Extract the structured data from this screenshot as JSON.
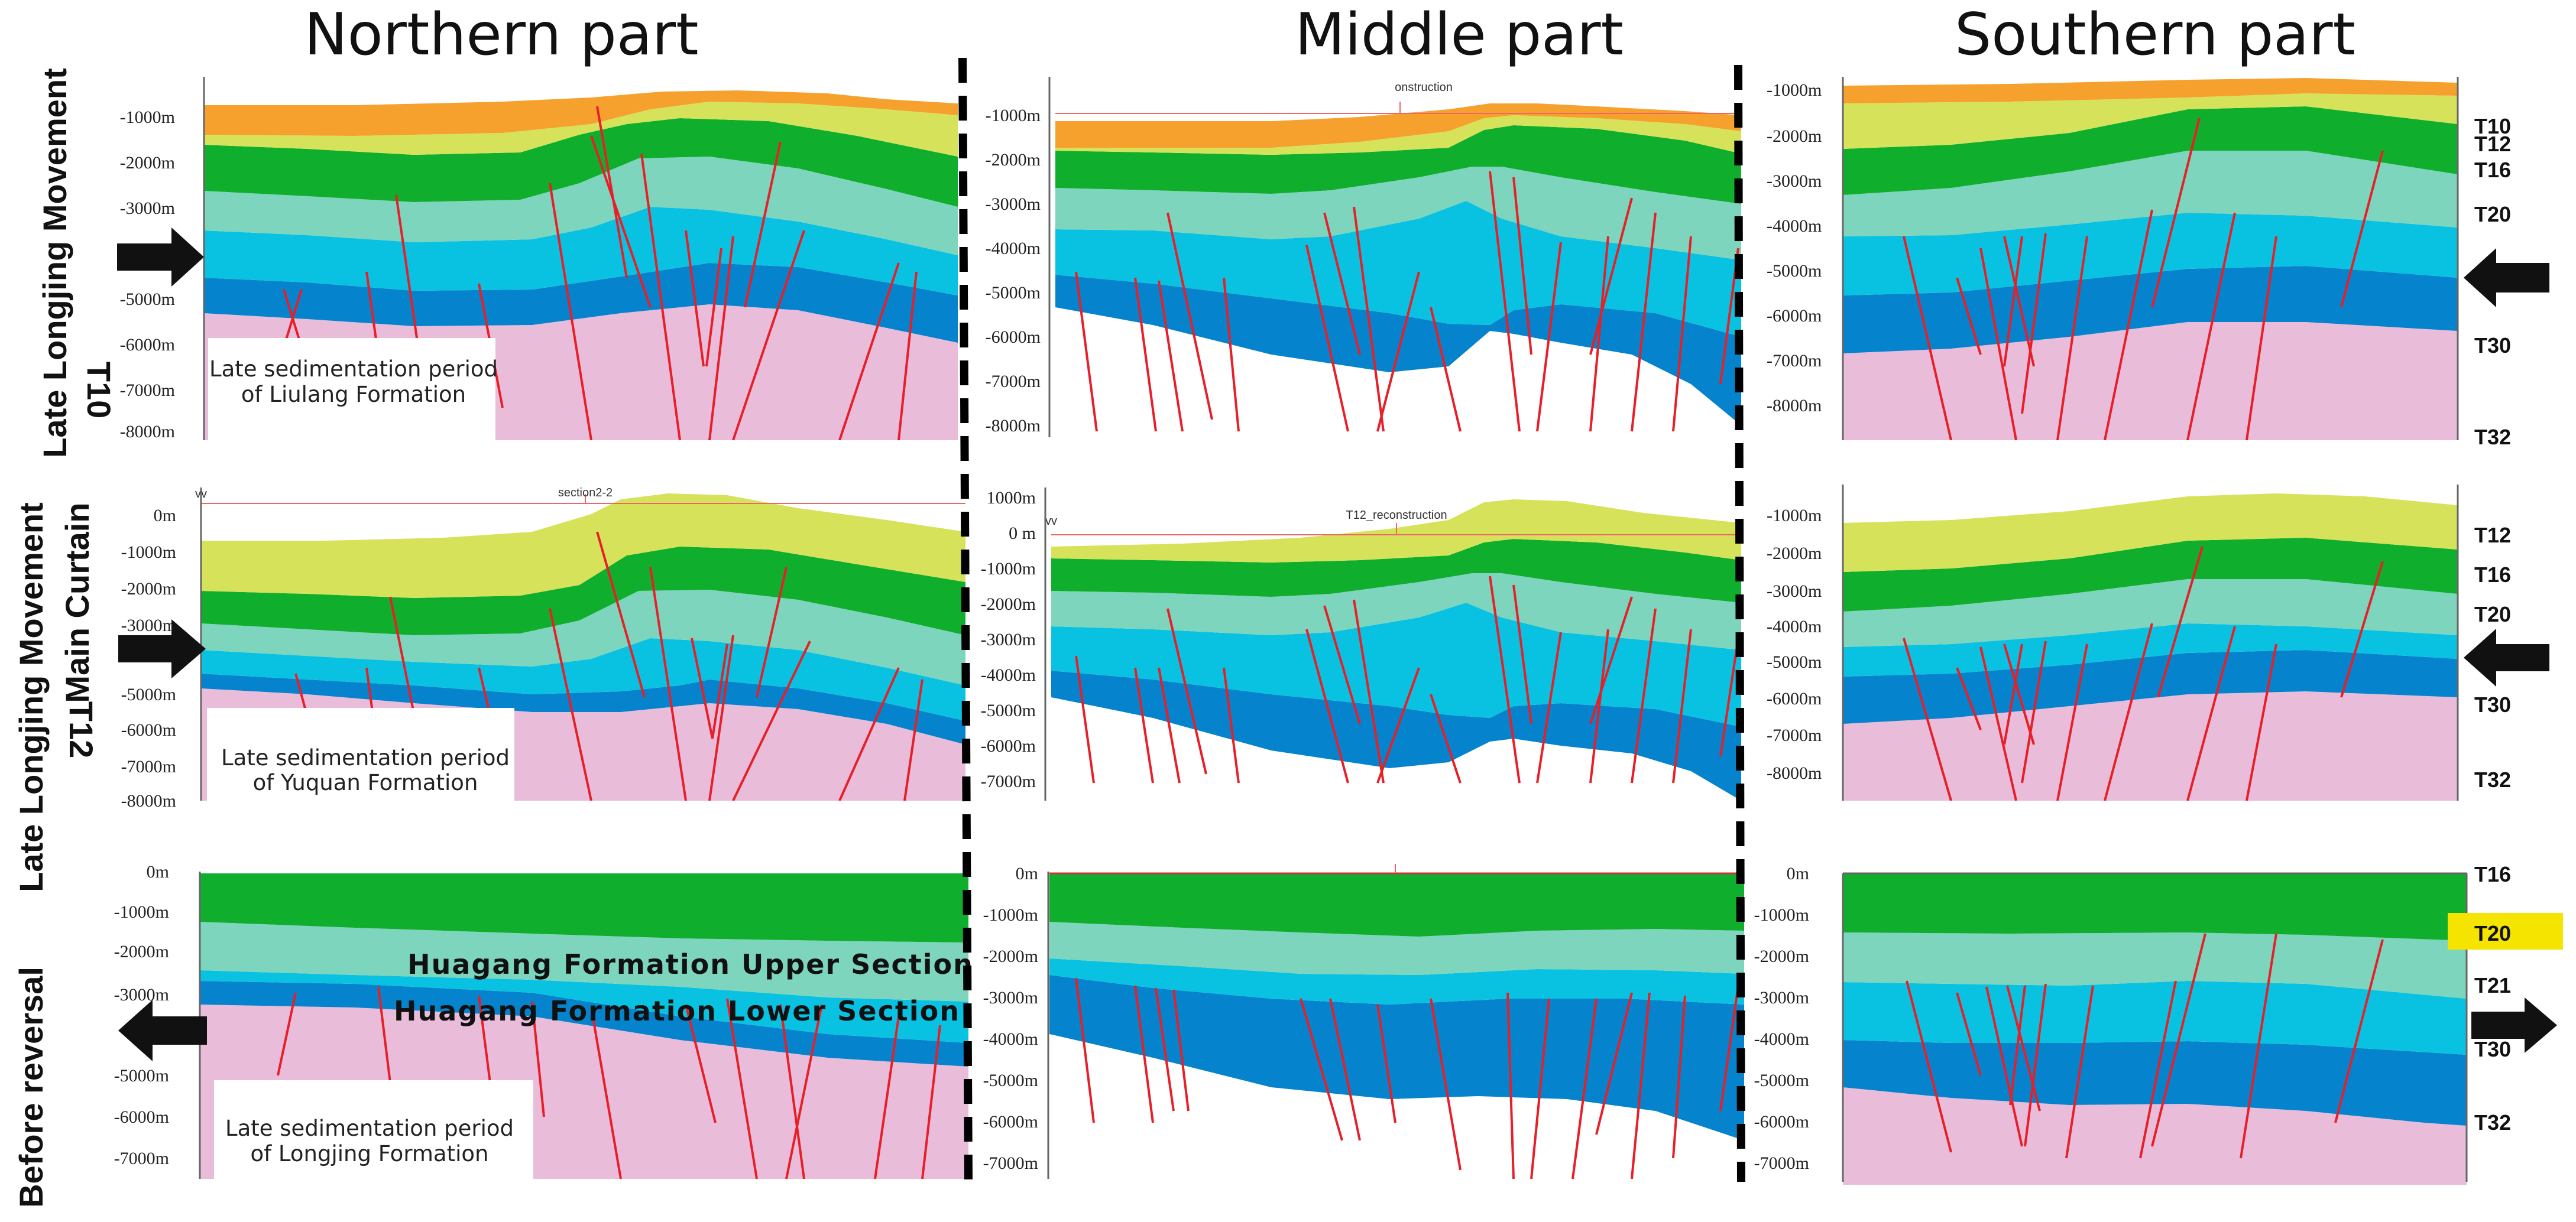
{
  "columns": [
    "Northern part",
    "Middle part",
    "Southern part"
  ],
  "rows": [
    {
      "movement": "Late Longjing Movement",
      "horizon": "T10",
      "horizon_extra": ""
    },
    {
      "movement": "Late Longjing Movement",
      "horizon": "T12",
      "horizon_extra": "Main Curtain"
    },
    {
      "movement": "Before reversal",
      "horizon": "",
      "horizon_extra": ""
    }
  ],
  "notes": {
    "r0_line1": "Late sedimentation period",
    "r0_line2": "of  Liulang Formation",
    "r1_line1": "Late sedimentation period",
    "r1_line2": "of Yuquan Formation",
    "r2_line1": "Late sedimentation period",
    "r2_line2": "of Longjing Formation"
  },
  "formation_labels": {
    "upper": "Huagang Formation Upper Section",
    "lower": "Huagang Formation Lower Section"
  },
  "software_labels": {
    "r0_mid_title": "onstruction",
    "r1_north_title": "section2-2",
    "r1_mid_title": "T12_reconstruction",
    "r1_north_corner": "vv",
    "r1_mid_corner": "vv"
  },
  "ticks": {
    "r0_north": [
      "-1000m",
      "-2000m",
      "-3000m",
      "-5000m",
      "-6000m",
      "-7000m",
      "-8000m"
    ],
    "r0_mid": [
      "-1000m",
      "-2000m",
      "-3000m",
      "-4000m",
      "-5000m",
      "-6000m",
      "-7000m",
      "-8000m"
    ],
    "r0_south": [
      "-1000m",
      "-2000m",
      "-3000m",
      "-4000m",
      "-5000m",
      "-6000m",
      "-7000m",
      "-8000m"
    ],
    "r1_north": [
      "0m",
      "-1000m",
      "-2000m",
      "-3000m",
      "-5000m",
      "-6000m",
      "-7000m",
      "-8000m"
    ],
    "r1_mid": [
      "1000m",
      "0 m",
      "-1000m",
      "-2000m",
      "-3000m",
      "-4000m",
      "-5000m",
      "-6000m",
      "-7000m"
    ],
    "r1_south": [
      "-1000m",
      "-2000m",
      "-3000m",
      "-4000m",
      "-5000m",
      "-6000m",
      "-7000m",
      "-8000m"
    ],
    "r2_north": [
      "0m",
      "-1000m",
      "-2000m",
      "-3000m",
      "-5000m",
      "-6000m",
      "-7000m"
    ],
    "r2_mid": [
      "0m",
      "-1000m",
      "-2000m",
      "-3000m",
      "-4000m",
      "-5000m",
      "-6000m",
      "-7000m"
    ],
    "r2_south": [
      "0m",
      "-1000m",
      "-2000m",
      "-3000m",
      "-4000m",
      "-5000m",
      "-6000m",
      "-7000m"
    ]
  },
  "horizons": {
    "r0": [
      "T10",
      "T12",
      "T16",
      "T20",
      "T30",
      "T32"
    ],
    "r1": [
      "T12",
      "T16",
      "T20",
      "T30",
      "T32"
    ],
    "r2": [
      "T16",
      "T20",
      "T21",
      "T30",
      "T32"
    ],
    "highlighted": "T20",
    "highlight_bg": "#f5e400",
    "highlight_text": "#e0000f"
  },
  "arrows": {
    "r0_left": "right",
    "r0_right": "left",
    "r1_left": "right",
    "r1_right": "left",
    "r2_left": "left",
    "r2_right": "right"
  },
  "colors": {
    "orange": "#f6a12e",
    "yellow_green": "#d6e35a",
    "green": "#0fae2d",
    "mint": "#7dd5bd",
    "cyan": "#09c2e1",
    "blue": "#0583cc",
    "pink": "#e9bcd9",
    "fault": "#e61f28"
  }
}
